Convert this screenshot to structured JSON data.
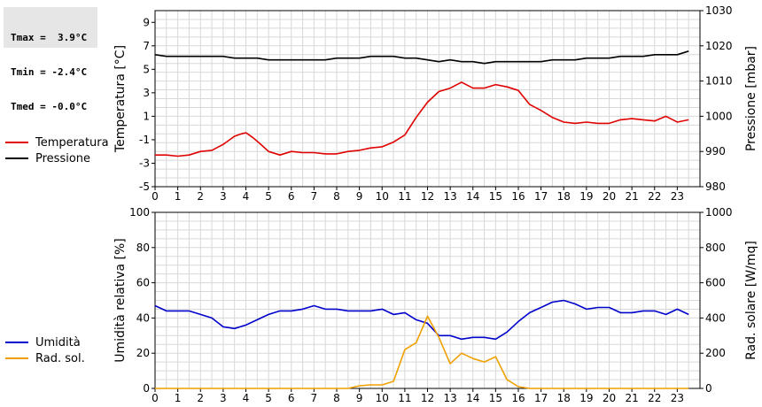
{
  "stats": {
    "tmax": "Tmax =  3.9°C",
    "tmin": "Tmin = -2.4°C",
    "tmed": "Tmed = -0.0°C"
  },
  "legend_top": [
    {
      "label": "Temperatura",
      "color": "#e00000"
    },
    {
      "label": "Pressione",
      "color": "#000000"
    }
  ],
  "legend_bottom": [
    {
      "label": "Umidità",
      "color": "#0000cc"
    },
    {
      "label": "Rad. sol.",
      "color": "#f0a000"
    }
  ],
  "chart_data": [
    {
      "type": "line",
      "x_ticks": [
        "0",
        "1",
        "2",
        "3",
        "4",
        "5",
        "6",
        "6",
        "7",
        "8",
        "9",
        "10",
        "11",
        "12",
        "13",
        "14",
        "15",
        "16",
        "17",
        "18",
        "19",
        "20",
        "21",
        "22",
        "23"
      ],
      "xlim": [
        0,
        24
      ],
      "ylabel_left": "Temperatura [°C]",
      "ylim_left": [
        -5,
        10
      ],
      "yticks_left": [
        "-5",
        "-3",
        "-1",
        "1",
        "3",
        "5",
        "7",
        "9"
      ],
      "ylabel_right": "Pressione [mbar]",
      "ylim_right": [
        980,
        1030
      ],
      "yticks_right": [
        "980",
        "990",
        "1000",
        "1010",
        "1020",
        "1030"
      ],
      "grid": true,
      "series": [
        {
          "name": "Temperatura",
          "axis": "left",
          "color": "#e00000",
          "x": [
            0,
            0.5,
            1,
            1.5,
            2,
            2.5,
            3,
            3.5,
            3.8,
            4,
            4.3,
            4.6,
            5,
            5.5,
            6,
            6.5,
            7,
            7.5,
            8,
            8.5,
            9,
            9.5,
            10,
            10.5,
            11,
            11.5,
            12,
            12.5,
            13,
            13.5,
            14,
            14.5,
            15,
            15.5,
            16,
            16.5,
            17,
            17.5,
            18,
            18.5,
            19,
            19.5,
            20,
            20.5,
            21,
            21.5,
            22,
            22.5,
            23,
            23.5
          ],
          "y": [
            -2.3,
            -2.3,
            -2.4,
            -2.3,
            -2.0,
            -1.9,
            -1.4,
            -0.7,
            -0.5,
            -0.4,
            -0.8,
            -1.3,
            -2.0,
            -2.3,
            -2.0,
            -2.1,
            -2.1,
            -2.2,
            -2.2,
            -2.0,
            -1.9,
            -1.7,
            -1.6,
            -1.2,
            -0.6,
            0.9,
            2.2,
            3.1,
            3.4,
            3.9,
            3.4,
            3.4,
            3.7,
            3.5,
            3.2,
            2.0,
            1.5,
            0.9,
            0.5,
            0.4,
            0.5,
            0.4,
            0.4,
            0.7,
            0.8,
            0.7,
            0.6,
            1.0,
            0.5,
            0.7
          ]
        },
        {
          "name": "Pressione",
          "axis": "right",
          "color": "#000000",
          "x": [
            0,
            0.5,
            1,
            1.5,
            2,
            2.5,
            3,
            3.5,
            4,
            4.5,
            5,
            5.5,
            6,
            6.5,
            7,
            7.5,
            8,
            8.5,
            9,
            9.5,
            10,
            10.5,
            11,
            11.5,
            12,
            12.5,
            13,
            13.5,
            14,
            14.5,
            15,
            15.5,
            16,
            16.5,
            17,
            17.5,
            18,
            18.5,
            19,
            19.5,
            20,
            20.5,
            21,
            21.5,
            22,
            22.5,
            23,
            23.5
          ],
          "y": [
            1017.5,
            1017,
            1017,
            1017,
            1017,
            1017,
            1017,
            1016.5,
            1016.5,
            1016.5,
            1016,
            1016,
            1016,
            1016,
            1016,
            1016,
            1016.5,
            1016.5,
            1016.5,
            1017,
            1017,
            1017,
            1016.5,
            1016.5,
            1016,
            1015.5,
            1016,
            1015.5,
            1015.5,
            1015,
            1015.5,
            1015.5,
            1015.5,
            1015.5,
            1015.5,
            1016,
            1016,
            1016,
            1016.5,
            1016.5,
            1016.5,
            1017,
            1017,
            1017,
            1017.5,
            1017.5,
            1017.5,
            1018.5
          ]
        }
      ]
    },
    {
      "type": "line",
      "x_ticks": [
        "0",
        "1",
        "2",
        "3",
        "4",
        "5",
        "6",
        "7",
        "8",
        "9",
        "10",
        "11",
        "12",
        "13",
        "14",
        "15",
        "16",
        "17",
        "18",
        "19",
        "20",
        "21",
        "22",
        "23"
      ],
      "xlim": [
        0,
        24
      ],
      "ylabel_left": "Umidità relativa [%]",
      "ylim_left": [
        0,
        100
      ],
      "yticks_left": [
        "0",
        "20",
        "40",
        "60",
        "80",
        "100"
      ],
      "ylabel_right": "Rad. solare [W/mq]",
      "ylim_right": [
        0,
        1000
      ],
      "yticks_right": [
        "0",
        "200",
        "400",
        "600",
        "800",
        "1000"
      ],
      "grid": true,
      "series": [
        {
          "name": "Umidità",
          "axis": "left",
          "color": "#0000cc",
          "x": [
            0,
            0.5,
            1,
            1.5,
            2,
            2.5,
            3,
            3.5,
            4,
            4.5,
            5,
            5.5,
            6,
            6.5,
            7,
            7.5,
            8,
            8.5,
            9,
            9.5,
            10,
            10.5,
            11,
            11.5,
            12,
            12.5,
            13,
            13.5,
            14,
            14.5,
            15,
            15.5,
            16,
            16.5,
            17,
            17.5,
            18,
            18.5,
            19,
            19.5,
            20,
            20.5,
            21,
            21.5,
            22,
            22.5,
            23,
            23.5
          ],
          "y": [
            47,
            44,
            44,
            44,
            42,
            40,
            35,
            34,
            36,
            39,
            42,
            44,
            44,
            45,
            47,
            45,
            45,
            44,
            44,
            44,
            45,
            42,
            43,
            39,
            37,
            30,
            30,
            28,
            29,
            29,
            28,
            32,
            38,
            43,
            46,
            49,
            50,
            48,
            45,
            46,
            46,
            43,
            43,
            44,
            44,
            42,
            45,
            42
          ]
        },
        {
          "name": "Rad. sol.",
          "axis": "right",
          "color": "#f0a000",
          "x": [
            0,
            1,
            2,
            3,
            4,
            5,
            6,
            7,
            8,
            8.5,
            9,
            9.5,
            10,
            10.5,
            11,
            11.5,
            12,
            12.5,
            13,
            13.5,
            14,
            14.5,
            15,
            15.5,
            16,
            16.5,
            17,
            18,
            19,
            20,
            21,
            22,
            23,
            23.5
          ],
          "y": [
            0,
            0,
            0,
            0,
            0,
            0,
            0,
            0,
            0,
            0,
            15,
            20,
            20,
            40,
            220,
            260,
            410,
            290,
            140,
            200,
            170,
            150,
            180,
            50,
            10,
            0,
            0,
            0,
            0,
            0,
            0,
            0,
            0,
            0
          ]
        }
      ]
    }
  ]
}
